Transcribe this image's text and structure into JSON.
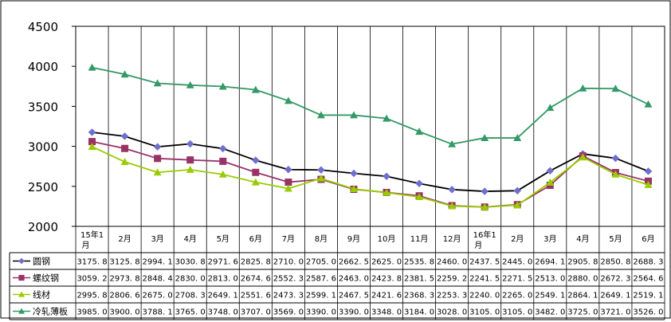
{
  "chart_data": {
    "type": "line",
    "title": "",
    "xlabel": "",
    "ylabel": "",
    "ylim": [
      2000,
      4500
    ],
    "yticks": [
      2000,
      2500,
      3000,
      3500,
      4000,
      4500
    ],
    "grid": "vertical",
    "legend": "data table below plot",
    "categories": [
      "15年1月",
      "2月",
      "3月",
      "4月",
      "5月",
      "6月",
      "7月",
      "8月",
      "9月",
      "10月",
      "11月",
      "12月",
      "16年1月",
      "2月",
      "3月",
      "4月",
      "5月",
      "6月"
    ],
    "series": [
      {
        "name": "圆钢",
        "color": "#000000",
        "marker": "diamond",
        "markerColor": "#7070cc",
        "values": [
          3175.8,
          3125.8,
          2994.1,
          3030.8,
          2971.6,
          2825.8,
          2710.0,
          2705.0,
          2662.5,
          2625.0,
          2535.8,
          2460.0,
          2437.5,
          2445.0,
          2694.1,
          2905.8,
          2850.8,
          2688.3
        ],
        "labels": [
          "3175. 8",
          "3125. 8",
          "2994. 1",
          "3030. 8",
          "2971. 6",
          "2825. 8",
          "2710. 0",
          "2705. 0",
          "2662. 5",
          "2625. 0",
          "2535. 8",
          "2460. 0",
          "2437. 5",
          "2445. 0",
          "2694. 1",
          "2905. 8",
          "2850. 8",
          "2688. 3"
        ]
      },
      {
        "name": "螺纹钢",
        "color": "#993366",
        "marker": "square",
        "markerColor": "#993366",
        "values": [
          3059.2,
          2973.8,
          2848.4,
          2830.0,
          2813.0,
          2674.6,
          2552.3,
          2587.6,
          2463.0,
          2423.8,
          2381.5,
          2259.2,
          2241.5,
          2271.5,
          2513.0,
          2880.0,
          2672.3,
          2564.6
        ],
        "labels": [
          "3059. 2",
          "2973. 8",
          "2848. 4",
          "2830. 0",
          "2813. 0",
          "2674. 6",
          "2552. 3",
          "2587. 6",
          "2463. 0",
          "2423. 8",
          "2381. 5",
          "2259. 2",
          "2241. 5",
          "2271. 5",
          "2513. 0",
          "2880. 0",
          "2672. 3",
          "2564. 6"
        ]
      },
      {
        "name": "线材",
        "color": "#99cc00",
        "marker": "triangle",
        "markerColor": "#99cc00",
        "values": [
          2995.8,
          2806.6,
          2675.0,
          2708.3,
          2649.1,
          2551.6,
          2473.3,
          2599.1,
          2467.5,
          2421.6,
          2368.3,
          2253.3,
          2240.0,
          2265.0,
          2549.1,
          2864.1,
          2649.1,
          2519.1
        ],
        "labels": [
          "2995. 8",
          "2806. 6",
          "2675. 0",
          "2708. 3",
          "2649. 1",
          "2551. 6",
          "2473. 3",
          "2599. 1",
          "2467. 5",
          "2421. 6",
          "2368. 3",
          "2253. 3",
          "2240. 0",
          "2265. 0",
          "2549. 1",
          "2864. 1",
          "2649. 1",
          "2519. 1"
        ]
      },
      {
        "name": "冷轧薄板",
        "color": "#339966",
        "marker": "triangle",
        "markerColor": "#339966",
        "values": [
          3985.0,
          3900.0,
          3788.1,
          3765.0,
          3748.0,
          3707.0,
          3569.0,
          3390.0,
          3390.0,
          3348.0,
          3184.0,
          3028.0,
          3105.0,
          3105.0,
          3482.0,
          3725.0,
          3721.0,
          3526.0
        ],
        "labels": [
          "3985. 0",
          "3900. 0",
          "3788. 1",
          "3765. 0",
          "3748. 0",
          "3707. 0",
          "3569. 0",
          "3390. 0",
          "3390. 0",
          "3348. 0",
          "3184. 0",
          "3028. 0",
          "3105. 0",
          "3105. 0",
          "3482. 0",
          "3725. 0",
          "3721. 0",
          "3526. 0"
        ]
      }
    ]
  }
}
